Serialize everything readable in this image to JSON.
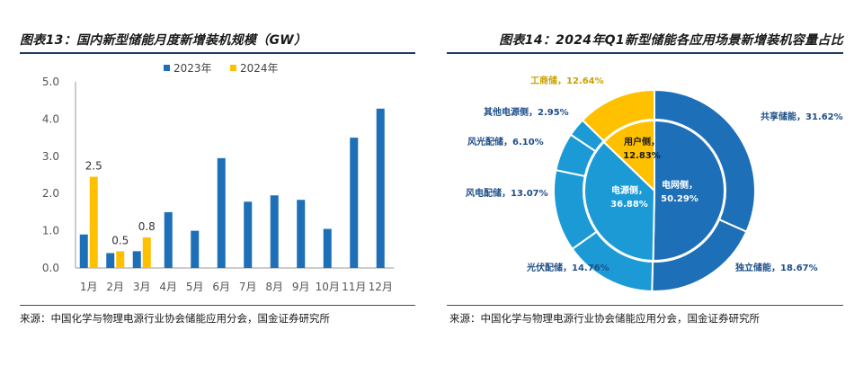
{
  "left": {
    "title": "图表13：国内新型储能月度新增装机规模（GW）",
    "source": "来源：中国化学与物理电源行业协会储能应用分会，国金证券研究所"
  },
  "right": {
    "title": "图表14：2024年Q1新型储能各应用场景新增装机容量占比",
    "source": "来源：中国化学与物理电源行业协会储能应用分会，国金证券研究所"
  },
  "colors": {
    "s2023": "#1d6fb8",
    "s2024": "#ffc000",
    "rule": "#1f3b63"
  },
  "chart_data": [
    {
      "type": "bar",
      "title": "图表13：国内新型储能月度新增装机规模（GW）",
      "categories": [
        "1月",
        "2月",
        "3月",
        "4月",
        "5月",
        "6月",
        "7月",
        "8月",
        "9月",
        "10月",
        "11月",
        "12月"
      ],
      "ylim": [
        0,
        5
      ],
      "yticks": [
        "0.0",
        "1.0",
        "2.0",
        "3.0",
        "4.0",
        "5.0"
      ],
      "grid": false,
      "legend": "top-center",
      "series": [
        {
          "name": "2023年",
          "color": "#1d6fb8",
          "values": [
            0.9,
            0.4,
            0.45,
            1.5,
            1.0,
            2.95,
            1.78,
            1.95,
            1.83,
            1.05,
            3.5,
            4.28
          ]
        },
        {
          "name": "2024年",
          "color": "#ffc000",
          "values": [
            2.45,
            0.45,
            0.82,
            null,
            null,
            null,
            null,
            null,
            null,
            null,
            null,
            null
          ],
          "labels": [
            "2.5",
            "0.5",
            "0.8"
          ]
        }
      ]
    },
    {
      "type": "pie",
      "subtype": "donut-nested",
      "title": "图表14：2024年Q1新型储能各应用场景新增装机容量占比",
      "inner": [
        {
          "label": "电网侧，",
          "value_text": "50.29%",
          "value": 50.29,
          "color": "#1d6fb8"
        },
        {
          "label": "电源侧，",
          "value_text": "36.88%",
          "value": 36.88,
          "color": "#1b9ad6"
        },
        {
          "label": "用户侧，",
          "value_text": "12.83%",
          "value": 12.83,
          "color": "#ffc000"
        }
      ],
      "outer": [
        {
          "label": "共享储能，31.62%",
          "value": 31.62,
          "color": "#1d6fb8"
        },
        {
          "label": "独立储能，18.67%",
          "value": 18.67,
          "color": "#1d6fb8"
        },
        {
          "label": "光伏配储，14.76%",
          "value": 14.76,
          "color": "#1b9ad6"
        },
        {
          "label": "风电配储，13.07%",
          "value": 13.07,
          "color": "#1b9ad6"
        },
        {
          "label": "风光配储，6.10%",
          "value": 6.1,
          "color": "#1b9ad6"
        },
        {
          "label": "其他电源侧，2.95%",
          "value": 2.95,
          "color": "#1b9ad6"
        },
        {
          "label": "工商储，12.64%",
          "value": 12.64,
          "color": "#ffc000"
        }
      ]
    }
  ]
}
